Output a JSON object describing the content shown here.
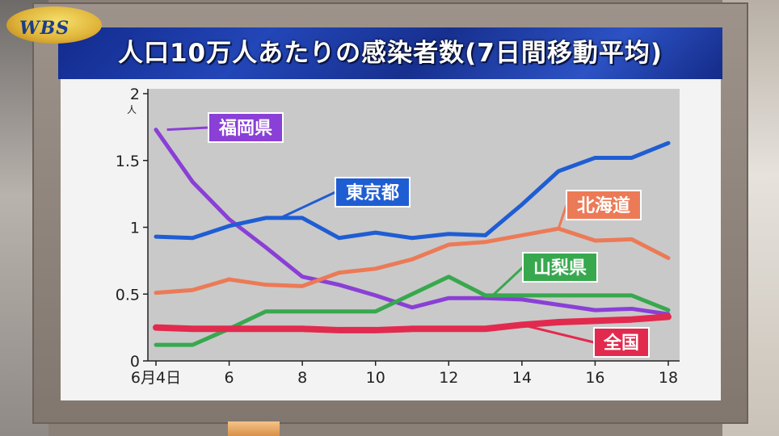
{
  "logo": {
    "text": "WBS"
  },
  "header": {
    "title": "人口10万人あたりの感染者数(7日間移動平均)"
  },
  "chart_data": {
    "type": "line",
    "title": "人口10万人あたりの感染者数(7日間移動平均)",
    "y_unit": "人",
    "ylim": [
      0,
      2
    ],
    "y_ticks": [
      "0",
      "0.5",
      "1",
      "1.5",
      "2"
    ],
    "x": [
      4,
      5,
      6,
      7,
      8,
      9,
      10,
      11,
      12,
      13,
      14,
      15,
      16,
      17,
      18
    ],
    "x_ticks": [
      {
        "x": 4,
        "label": "6月4日"
      },
      {
        "x": 6,
        "label": "6"
      },
      {
        "x": 8,
        "label": "8"
      },
      {
        "x": 10,
        "label": "10"
      },
      {
        "x": 12,
        "label": "12"
      },
      {
        "x": 14,
        "label": "14"
      },
      {
        "x": 16,
        "label": "16"
      },
      {
        "x": 18,
        "label": "18"
      }
    ],
    "grid": false,
    "series": [
      {
        "name": "福岡県",
        "color": "#8a3fd6",
        "values": [
          1.73,
          1.34,
          1.06,
          0.85,
          0.63,
          0.57,
          0.49,
          0.4,
          0.47,
          0.47,
          0.46,
          0.42,
          0.38,
          0.39,
          0.35
        ]
      },
      {
        "name": "東京都",
        "color": "#1f5dd3",
        "values": [
          0.93,
          0.92,
          1.01,
          1.07,
          1.07,
          0.92,
          0.96,
          0.92,
          0.95,
          0.94,
          1.17,
          1.42,
          1.52,
          1.52,
          1.63
        ]
      },
      {
        "name": "北海道",
        "color": "#ec7a56",
        "values": [
          0.51,
          0.53,
          0.61,
          0.57,
          0.56,
          0.66,
          0.69,
          0.76,
          0.87,
          0.89,
          0.94,
          0.99,
          0.9,
          0.91,
          0.77
        ]
      },
      {
        "name": "山梨県",
        "color": "#38a84e",
        "values": [
          0.12,
          0.12,
          0.24,
          0.37,
          0.37,
          0.37,
          0.37,
          0.5,
          0.63,
          0.49,
          0.49,
          0.49,
          0.49,
          0.49,
          0.38
        ]
      },
      {
        "name": "全国",
        "color": "#e22a4e",
        "values": [
          0.25,
          0.24,
          0.24,
          0.24,
          0.24,
          0.23,
          0.23,
          0.24,
          0.24,
          0.24,
          0.27,
          0.29,
          0.3,
          0.31,
          0.33
        ]
      }
    ]
  }
}
